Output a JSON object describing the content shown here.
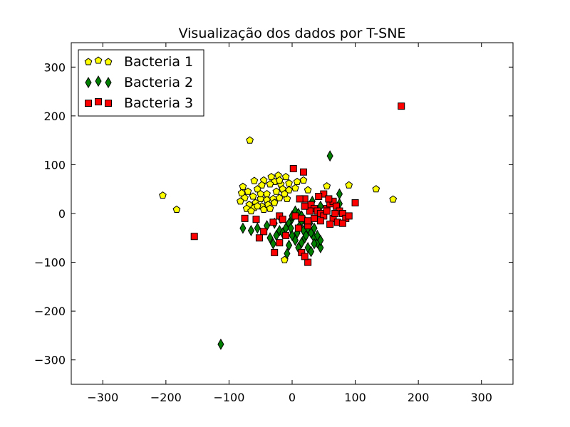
{
  "chart_data": {
    "type": "scatter",
    "title": "Visualização dos dados por T-SNE",
    "xlabel": "",
    "ylabel": "",
    "xlim": [
      -350,
      350
    ],
    "ylim": [
      -350,
      350
    ],
    "xticks": [
      -300,
      -200,
      -100,
      0,
      100,
      200,
      300
    ],
    "yticks": [
      -300,
      -200,
      -100,
      0,
      100,
      200,
      300
    ],
    "xtick_labels": [
      "−300",
      "−200",
      "−100",
      "0",
      "100",
      "200",
      "300"
    ],
    "ytick_labels": [
      "−300",
      "−200",
      "−100",
      "0",
      "100",
      "200",
      "300"
    ],
    "grid": false,
    "legend_position": "top-left",
    "series": [
      {
        "name": "Bacteria 1",
        "marker": "pentagon",
        "color": "#ffff00",
        "edge_color": "#000000",
        "points": [
          [
            -205,
            37
          ],
          [
            -183,
            8
          ],
          [
            -67,
            150
          ],
          [
            -78,
            55
          ],
          [
            -60,
            67
          ],
          [
            -45,
            68
          ],
          [
            -33,
            75
          ],
          [
            -22,
            78
          ],
          [
            -10,
            75
          ],
          [
            -5,
            62
          ],
          [
            -18,
            60
          ],
          [
            -28,
            65
          ],
          [
            -35,
            60
          ],
          [
            -48,
            58
          ],
          [
            -55,
            50
          ],
          [
            -70,
            45
          ],
          [
            -80,
            42
          ],
          [
            -75,
            32
          ],
          [
            -62,
            35
          ],
          [
            -50,
            30
          ],
          [
            -40,
            28
          ],
          [
            -30,
            30
          ],
          [
            -20,
            32
          ],
          [
            -8,
            30
          ],
          [
            -58,
            22
          ],
          [
            -68,
            18
          ],
          [
            -82,
            25
          ],
          [
            -72,
            10
          ],
          [
            -60,
            12
          ],
          [
            -48,
            15
          ],
          [
            -38,
            18
          ],
          [
            -28,
            22
          ],
          [
            -35,
            10
          ],
          [
            -45,
            8
          ],
          [
            -55,
            15
          ],
          [
            -65,
            5
          ],
          [
            -40,
            40
          ],
          [
            -25,
            45
          ],
          [
            -15,
            50
          ],
          [
            -5,
            48
          ],
          [
            5,
            52
          ],
          [
            8,
            65
          ],
          [
            18,
            68
          ],
          [
            25,
            48
          ],
          [
            -12,
            40
          ],
          [
            55,
            56
          ],
          [
            90,
            58
          ],
          [
            133,
            50
          ],
          [
            160,
            29
          ],
          [
            -12,
            -95
          ],
          [
            -20,
            68
          ],
          [
            -50,
            40
          ]
        ]
      },
      {
        "name": "Bacteria 2",
        "marker": "diamond",
        "color": "#008000",
        "edge_color": "#000000",
        "points": [
          [
            -113,
            -268
          ],
          [
            60,
            118
          ],
          [
            75,
            40
          ],
          [
            75,
            20
          ],
          [
            -78,
            -30
          ],
          [
            -65,
            -35
          ],
          [
            -55,
            -30
          ],
          [
            -40,
            -25
          ],
          [
            -35,
            -50
          ],
          [
            -30,
            -62
          ],
          [
            -25,
            -45
          ],
          [
            -20,
            -35
          ],
          [
            -15,
            -40
          ],
          [
            -10,
            -30
          ],
          [
            -5,
            -20
          ],
          [
            0,
            -10
          ],
          [
            5,
            5
          ],
          [
            10,
            0
          ],
          [
            15,
            -5
          ],
          [
            20,
            -15
          ],
          [
            25,
            -30
          ],
          [
            30,
            -40
          ],
          [
            35,
            -50
          ],
          [
            40,
            -60
          ],
          [
            45,
            -70
          ],
          [
            20,
            -50
          ],
          [
            15,
            -60
          ],
          [
            10,
            -70
          ],
          [
            5,
            -55
          ],
          [
            0,
            -45
          ],
          [
            -5,
            -65
          ],
          [
            -8,
            -82
          ],
          [
            25,
            -70
          ],
          [
            30,
            -78
          ],
          [
            35,
            -62
          ],
          [
            40,
            -45
          ],
          [
            45,
            -55
          ],
          [
            35,
            -30
          ],
          [
            28,
            -20
          ],
          [
            18,
            -35
          ],
          [
            8,
            -40
          ],
          [
            -2,
            -30
          ],
          [
            12,
            -25
          ],
          [
            22,
            -45
          ],
          [
            32,
            25
          ],
          [
            45,
            15
          ],
          [
            0,
            -5
          ],
          [
            -18,
            -10
          ],
          [
            -28,
            -20
          ],
          [
            15,
            -15
          ]
        ]
      },
      {
        "name": "Bacteria 3",
        "marker": "square",
        "color": "#ff0000",
        "edge_color": "#000000",
        "points": [
          [
            173,
            220
          ],
          [
            -155,
            -47
          ],
          [
            2,
            92
          ],
          [
            18,
            85
          ],
          [
            -75,
            -10
          ],
          [
            -57,
            -12
          ],
          [
            -45,
            -37
          ],
          [
            -52,
            -50
          ],
          [
            -28,
            -80
          ],
          [
            -30,
            -18
          ],
          [
            -20,
            -5
          ],
          [
            -15,
            -12
          ],
          [
            -20,
            -60
          ],
          [
            -10,
            -45
          ],
          [
            15,
            -80
          ],
          [
            25,
            -100
          ],
          [
            20,
            -88
          ],
          [
            10,
            -30
          ],
          [
            25,
            -25
          ],
          [
            20,
            30
          ],
          [
            30,
            18
          ],
          [
            35,
            10
          ],
          [
            40,
            5
          ],
          [
            45,
            0
          ],
          [
            50,
            -5
          ],
          [
            55,
            10
          ],
          [
            60,
            20
          ],
          [
            65,
            25
          ],
          [
            70,
            15
          ],
          [
            75,
            5
          ],
          [
            80,
            0
          ],
          [
            85,
            -10
          ],
          [
            90,
            -5
          ],
          [
            100,
            22
          ],
          [
            50,
            40
          ],
          [
            42,
            35
          ],
          [
            58,
            30
          ],
          [
            65,
            -10
          ],
          [
            72,
            -18
          ],
          [
            80,
            -20
          ],
          [
            60,
            -22
          ],
          [
            45,
            -15
          ],
          [
            35,
            -10
          ],
          [
            28,
            5
          ],
          [
            20,
            15
          ],
          [
            12,
            30
          ],
          [
            5,
            -5
          ],
          [
            15,
            -10
          ],
          [
            25,
            -15
          ],
          [
            55,
            5
          ],
          [
            68,
            0
          ]
        ]
      }
    ]
  }
}
